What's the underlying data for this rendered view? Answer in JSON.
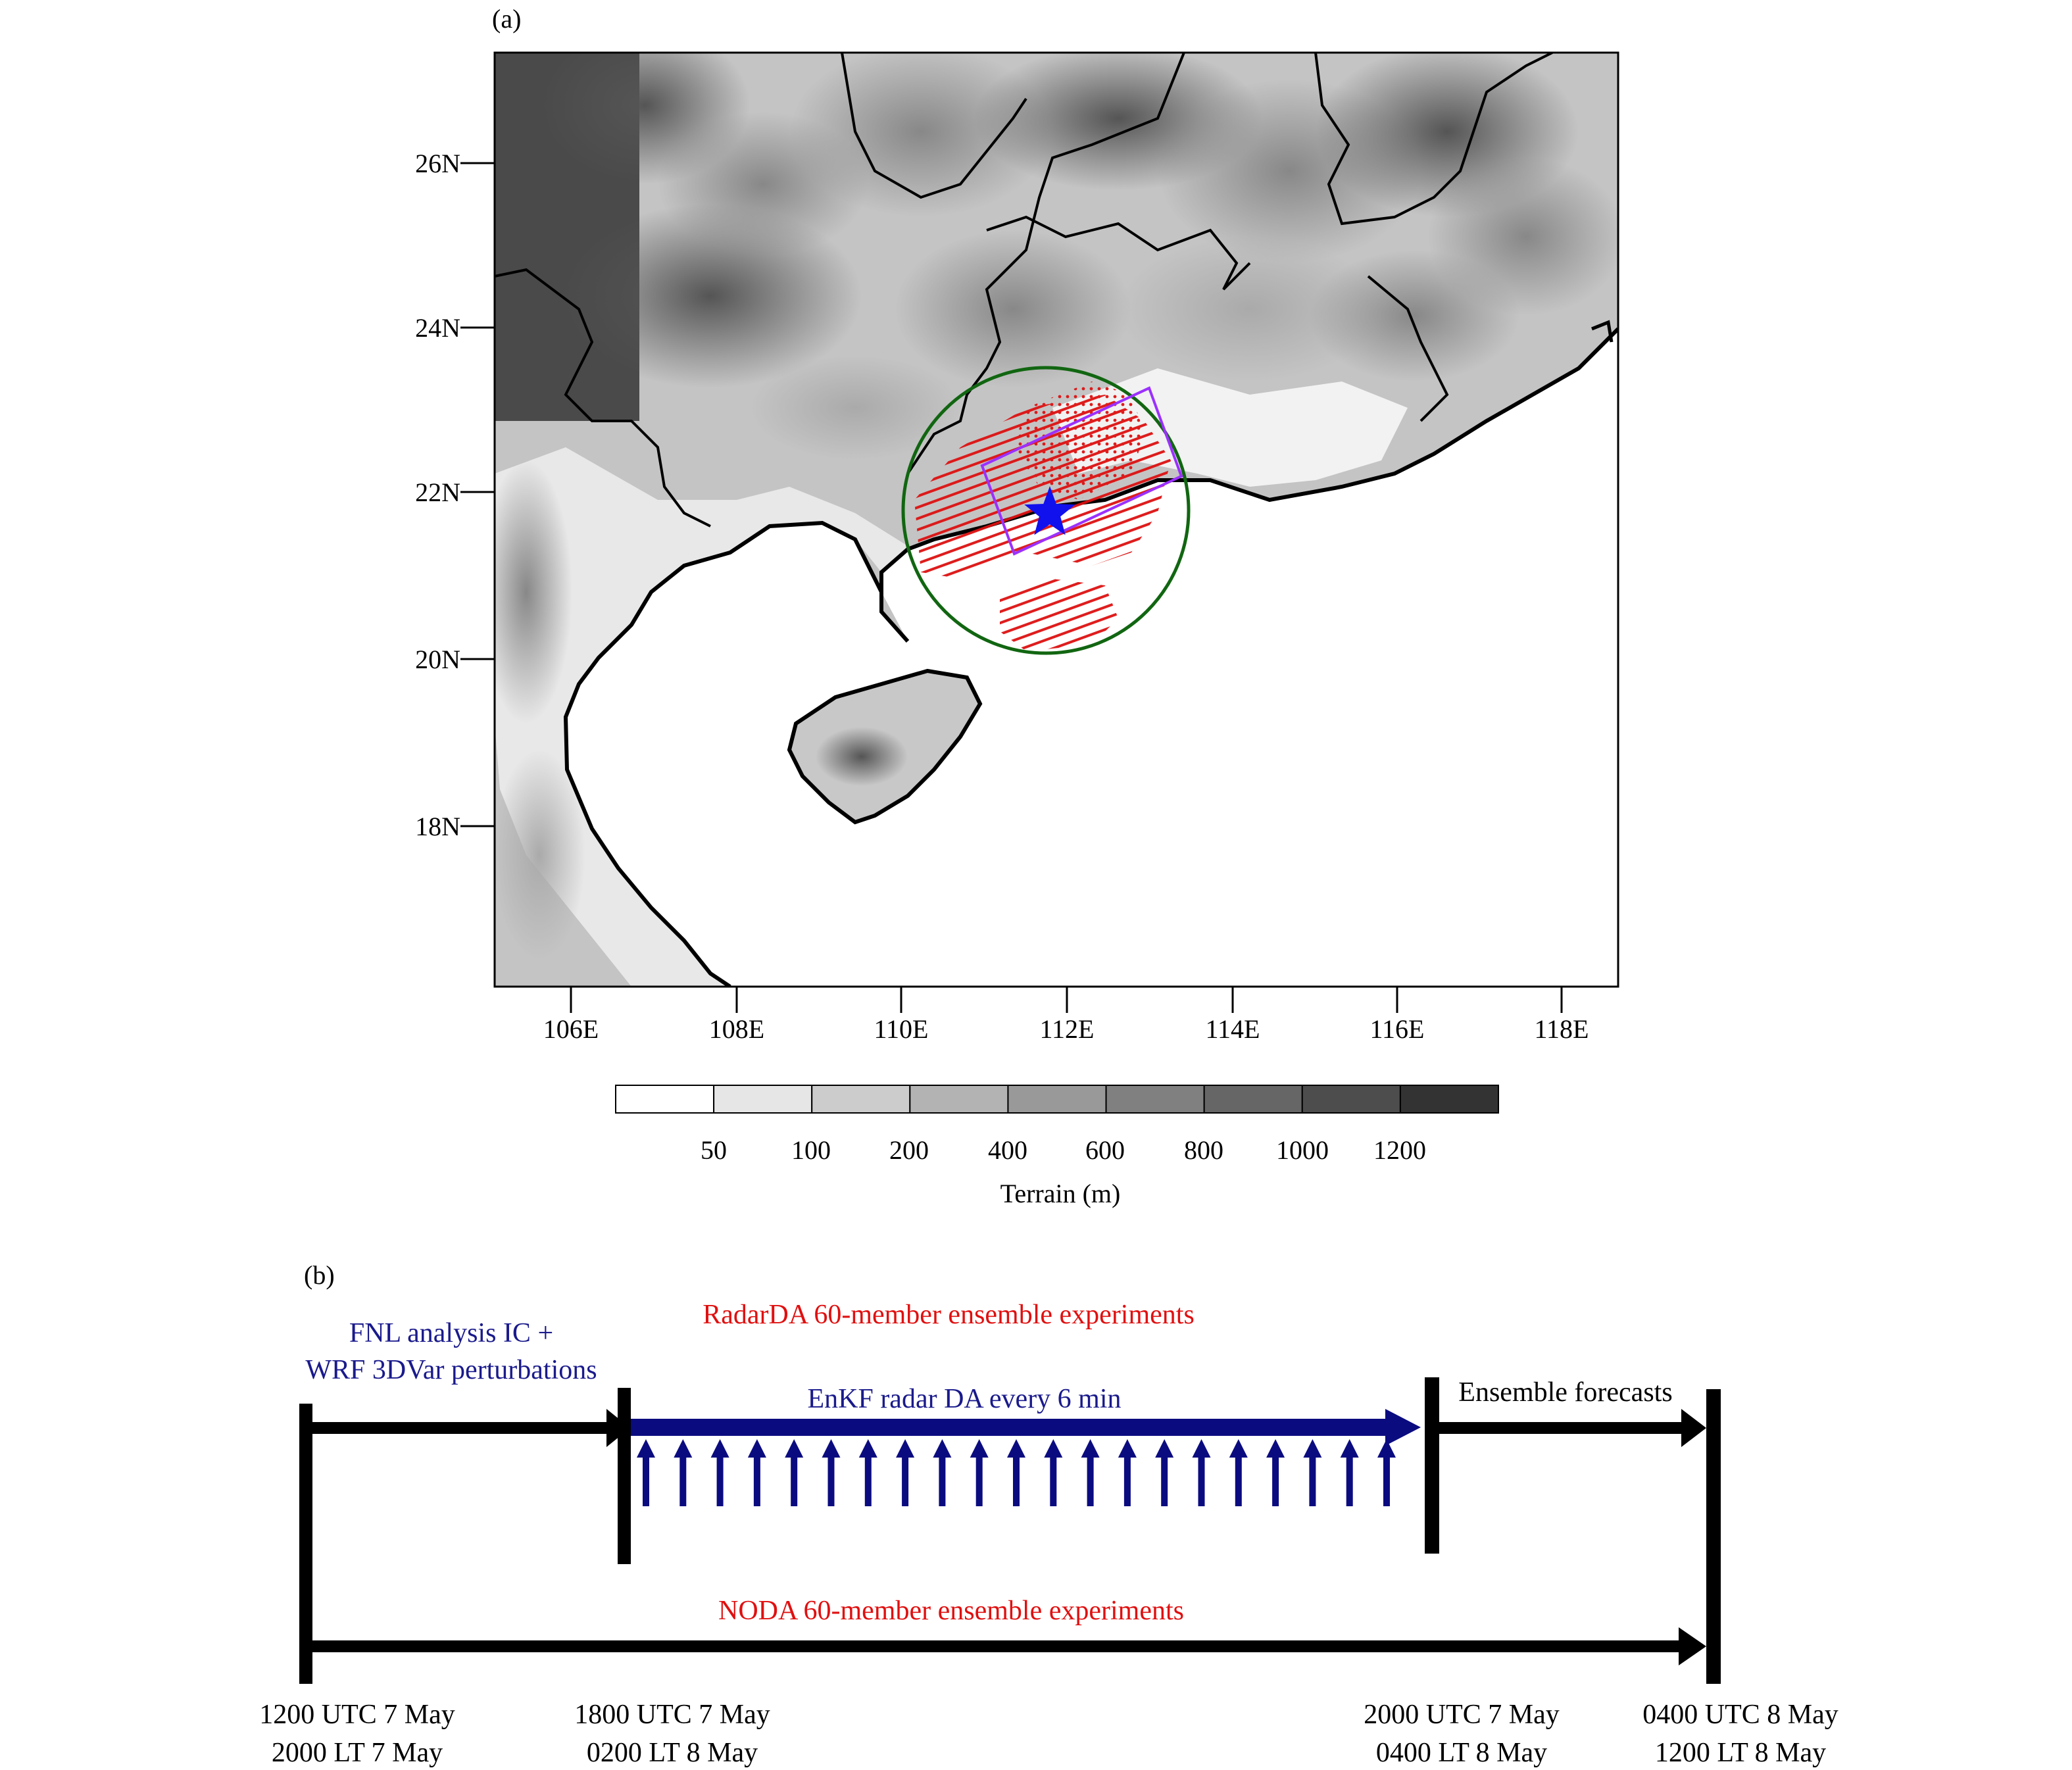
{
  "panel_a": {
    "label": "(a)",
    "lat_ticks": [
      "26N",
      "24N",
      "22N",
      "20N",
      "18N"
    ],
    "lon_ticks": [
      "106E",
      "108E",
      "110E",
      "112E",
      "114E",
      "116E",
      "118E"
    ],
    "colorbar": {
      "title": "Terrain (m)",
      "tick_labels": [
        "50",
        "100",
        "200",
        "400",
        "600",
        "800",
        "1000",
        "1200"
      ],
      "colors": [
        "#ffffff",
        "#e6e6e6",
        "#cccccc",
        "#b3b3b3",
        "#999999",
        "#808080",
        "#666666",
        "#4d4d4d",
        "#333333"
      ]
    },
    "colors": {
      "radar_circle": "#116611",
      "domain_box": "#9b30ff",
      "radar_obs": "#dd1111",
      "radar_star": "#1111ee"
    }
  },
  "panel_b": {
    "label": "(b)",
    "radarda_title": "RadarDA 60-member ensemble experiments",
    "fnl_line1": "FNL analysis IC +",
    "fnl_line2": "WRF 3DVar perturbations",
    "enkf_label": "EnKF radar DA every 6 min",
    "ensemble_forecasts": "Ensemble forecasts",
    "noda_title": "NODA 60-member ensemble experiments",
    "times": [
      {
        "utc": "1200 UTC 7 May",
        "lt": "2000 LT 7 May"
      },
      {
        "utc": "1800 UTC 7 May",
        "lt": "0200 LT 8 May"
      },
      {
        "utc": "2000 UTC 7 May",
        "lt": "0400 LT 8 May"
      },
      {
        "utc": "0400 UTC 8 May",
        "lt": "1200 LT 8 May"
      }
    ],
    "colors": {
      "blue_text": "#1a1a8c",
      "red_text": "#e01010",
      "blue_arrow": "#0b0b80"
    }
  }
}
